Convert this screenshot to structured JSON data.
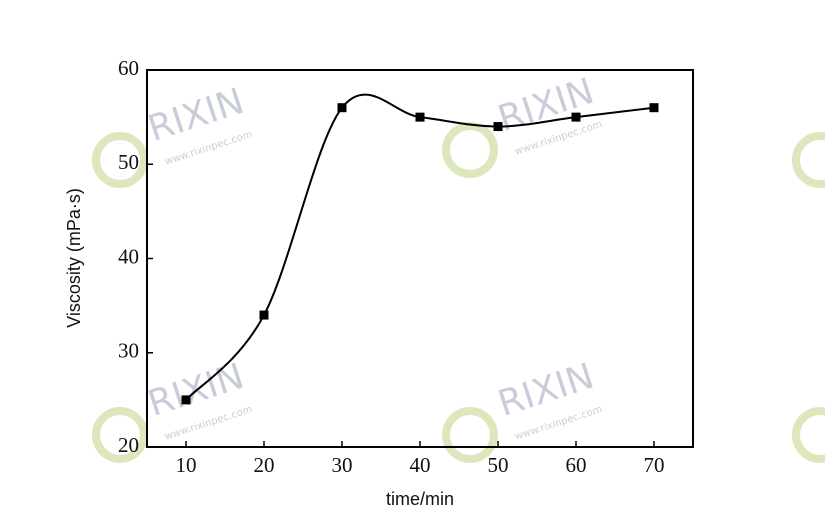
{
  "chart_data": {
    "type": "line",
    "xlabel": "time/min",
    "ylabel": "Viscosity (mPa·s)",
    "x": [
      10,
      20,
      30,
      40,
      50,
      60,
      70
    ],
    "series": [
      {
        "color": "#000000",
        "values": [
          25,
          34,
          56,
          55,
          54,
          55,
          56
        ]
      }
    ],
    "xlim": [
      5,
      75
    ],
    "xticks": [
      10,
      20,
      30,
      40,
      50,
      60,
      70
    ],
    "ylim": [
      20,
      60
    ],
    "yticks": [
      20,
      30,
      40,
      50,
      60
    ],
    "watermark": {
      "brand": "RIXIN",
      "url": "www.rixinpec.com"
    }
  }
}
